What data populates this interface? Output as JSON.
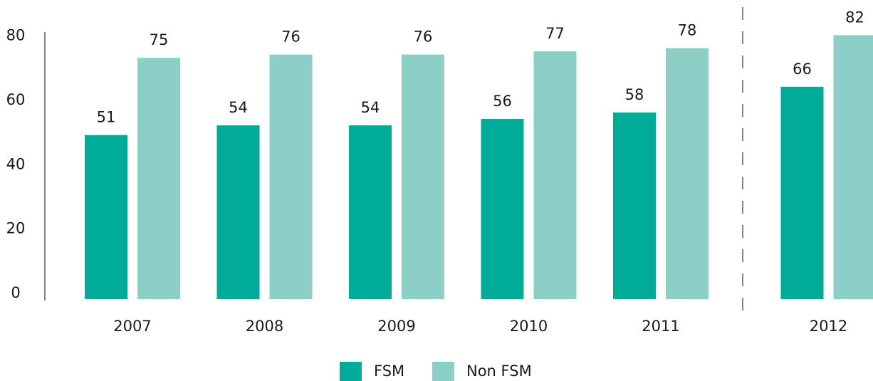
{
  "chart_data": {
    "type": "bar",
    "categories": [
      "2007",
      "2008",
      "2009",
      "2010",
      "2011",
      "2012"
    ],
    "series": [
      {
        "name": "FSM",
        "color": "#00ab9a",
        "values": [
          51,
          54,
          54,
          56,
          58,
          66
        ]
      },
      {
        "name": "Non FSM",
        "color": "#8ccfc7",
        "values": [
          75,
          76,
          76,
          77,
          78,
          82
        ]
      }
    ],
    "ylim": [
      0,
      83
    ],
    "yticks": [
      0,
      20,
      40,
      60,
      80
    ],
    "grid": false,
    "legend": "bottom"
  }
}
